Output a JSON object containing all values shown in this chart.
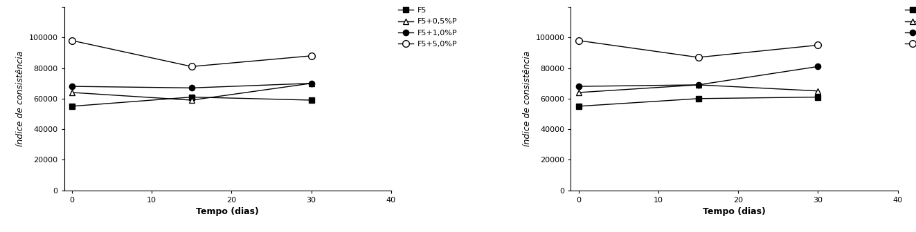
{
  "x": [
    0,
    15,
    30
  ],
  "left": {
    "F5": [
      55000,
      61000,
      59000
    ],
    "F5+0.5%P": [
      64000,
      59000,
      70000
    ],
    "F5+1.0%P": [
      68000,
      67000,
      70000
    ],
    "F5+5.0%P": [
      98000,
      81000,
      88000
    ]
  },
  "right": {
    "F5": [
      55000,
      60000,
      61000
    ],
    "F5+0.5%P": [
      64000,
      69000,
      65000
    ],
    "F5+1.0%P": [
      68000,
      69000,
      81000
    ],
    "F5+5.0%P": [
      98000,
      87000,
      95000
    ]
  },
  "ylabel": "índice de consistência",
  "xlabel": "Tempo (dias)",
  "ylim": [
    0,
    120000
  ],
  "xlim": [
    -1,
    40
  ],
  "yticks": [
    0,
    20000,
    40000,
    60000,
    80000,
    100000,
    120000
  ],
  "xticks": [
    0,
    10,
    20,
    30,
    40
  ],
  "legend_labels": [
    "F5",
    "F5+0,5%P",
    "F5+1,0%P",
    "F5+5,0%P"
  ],
  "series_styles": [
    {
      "color": "#000000",
      "marker": "s",
      "linestyle": "-",
      "markerfacecolor": "#000000",
      "markersize": 6
    },
    {
      "color": "#000000",
      "marker": "^",
      "linestyle": "-",
      "markerfacecolor": "#ffffff",
      "markersize": 6
    },
    {
      "color": "#000000",
      "marker": "o",
      "linestyle": "-",
      "markerfacecolor": "#000000",
      "markersize": 6
    },
    {
      "color": "#000000",
      "marker": "o",
      "linestyle": "-",
      "markerfacecolor": "#ffffff",
      "markersize": 7
    }
  ],
  "ylabel_fontsize": 9,
  "xlabel_fontsize": 9,
  "tick_fontsize": 8,
  "legend_fontsize": 8
}
